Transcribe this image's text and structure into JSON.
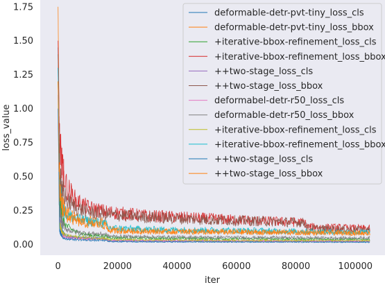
{
  "chart_data": {
    "type": "line",
    "title": "",
    "xlabel": "iter",
    "ylabel": "loss_value",
    "xlim": [
      -6000,
      110000
    ],
    "ylim": [
      -0.08,
      1.8
    ],
    "xticks": [
      0,
      20000,
      40000,
      60000,
      80000,
      100000
    ],
    "xtick_labels": [
      "0",
      "20000",
      "40000",
      "60000",
      "80000",
      "100000"
    ],
    "yticks": [
      0.0,
      0.25,
      0.5,
      0.75,
      1.0,
      1.25,
      1.5,
      1.75
    ],
    "ytick_labels": [
      "0.00",
      "0.25",
      "0.50",
      "0.75",
      "1.00",
      "1.25",
      "1.50",
      "1.75"
    ],
    "grid": false,
    "background": "#eaeaf2",
    "legend_position": "top-right",
    "series": [
      {
        "name": "deformable-detr-pvt-tiny_loss_cls",
        "color": "#1f77b4",
        "x": [
          0,
          500,
          1500,
          3000,
          6000,
          10000,
          16000,
          17000,
          30000,
          50000,
          70000,
          85000,
          100000,
          105000
        ],
        "y": [
          1.45,
          0.3,
          0.09,
          0.06,
          0.05,
          0.045,
          0.04,
          0.025,
          0.022,
          0.021,
          0.02,
          0.02,
          0.019,
          0.019
        ]
      },
      {
        "name": "deformable-detr-pvt-tiny_loss_bbox",
        "color": "#ff7f0e",
        "x": [
          0,
          500,
          1500,
          3000,
          6000,
          10000,
          16000,
          17000,
          30000,
          50000,
          70000,
          85000,
          100000,
          105000
        ],
        "y": [
          1.75,
          0.55,
          0.3,
          0.24,
          0.2,
          0.18,
          0.16,
          0.11,
          0.1,
          0.095,
          0.09,
          0.09,
          0.085,
          0.085
        ]
      },
      {
        "name": "+iterative-bbox-refinement_loss_cls",
        "color": "#2ca02c",
        "x": [
          0,
          500,
          1500,
          3000,
          6000,
          10000,
          16000,
          17000,
          30000,
          50000,
          70000,
          85000,
          100000,
          105000
        ],
        "y": [
          1.2,
          0.35,
          0.18,
          0.13,
          0.09,
          0.07,
          0.06,
          0.05,
          0.045,
          0.042,
          0.04,
          0.038,
          0.037,
          0.037
        ]
      },
      {
        "name": "+iterative-bbox-refinement_loss_bbox",
        "color": "#d62728",
        "x": [
          0,
          500,
          1500,
          3000,
          6000,
          10000,
          16000,
          30000,
          50000,
          70000,
          83000,
          84000,
          100000,
          105000
        ],
        "y": [
          1.5,
          0.75,
          0.55,
          0.42,
          0.32,
          0.27,
          0.24,
          0.21,
          0.19,
          0.17,
          0.16,
          0.13,
          0.12,
          0.115
        ]
      },
      {
        "name": "++two-stage_loss_cls",
        "color": "#9467bd",
        "x": [
          0,
          500,
          1500,
          3000,
          6000,
          10000,
          16000,
          17000,
          30000,
          50000,
          70000,
          85000,
          100000,
          105000
        ],
        "y": [
          1.3,
          0.2,
          0.08,
          0.06,
          0.05,
          0.045,
          0.04,
          0.028,
          0.025,
          0.024,
          0.023,
          0.022,
          0.022,
          0.022
        ]
      },
      {
        "name": "++two-stage_loss_bbox",
        "color": "#8c564b",
        "x": [
          0,
          500,
          1500,
          3000,
          6000,
          10000,
          16000,
          30000,
          50000,
          70000,
          83000,
          84000,
          100000,
          105000
        ],
        "y": [
          1.4,
          0.5,
          0.4,
          0.32,
          0.27,
          0.24,
          0.22,
          0.2,
          0.18,
          0.17,
          0.16,
          0.12,
          0.11,
          0.105
        ]
      },
      {
        "name": "deformabel-detr-r50_loss_cls",
        "color": "#e377c2",
        "x": [
          0,
          500,
          1500,
          3000,
          6000,
          10000,
          16000,
          17000,
          30000,
          50000,
          70000,
          85000,
          100000,
          105000
        ],
        "y": [
          1.1,
          0.12,
          0.06,
          0.05,
          0.045,
          0.04,
          0.038,
          0.03,
          0.028,
          0.027,
          0.026,
          0.025,
          0.025,
          0.025
        ]
      },
      {
        "name": "deformable-detr-r50_loss_bbox",
        "color": "#7f7f7f",
        "x": [
          0,
          500,
          1500,
          3000,
          6000,
          10000,
          16000,
          17000,
          30000,
          50000,
          70000,
          85000,
          100000,
          105000
        ],
        "y": [
          1.3,
          0.25,
          0.15,
          0.11,
          0.09,
          0.08,
          0.075,
          0.06,
          0.055,
          0.052,
          0.05,
          0.048,
          0.047,
          0.047
        ]
      },
      {
        "name": "+iterative-bbox-refinement_loss_cls",
        "color": "#bcbd22",
        "x": [
          0,
          500,
          1500,
          3000,
          6000,
          10000,
          16000,
          17000,
          30000,
          50000,
          70000,
          85000,
          100000,
          105000
        ],
        "y": [
          1.2,
          0.15,
          0.08,
          0.065,
          0.055,
          0.05,
          0.045,
          0.035,
          0.032,
          0.03,
          0.029,
          0.028,
          0.028,
          0.028
        ]
      },
      {
        "name": "+iterative-bbox-refinement_loss_bbox",
        "color": "#17becf",
        "x": [
          0,
          500,
          1500,
          3000,
          6000,
          10000,
          16000,
          17000,
          30000,
          50000,
          70000,
          85000,
          100000,
          105000
        ],
        "y": [
          1.3,
          0.45,
          0.26,
          0.22,
          0.19,
          0.17,
          0.15,
          0.12,
          0.11,
          0.105,
          0.1,
          0.095,
          0.09,
          0.09
        ]
      },
      {
        "name": "++two-stage_loss_cls",
        "color": "#1f77b4",
        "x": [
          0,
          500,
          1500,
          3000,
          6000,
          10000,
          16000,
          17000,
          30000,
          50000,
          70000,
          85000,
          100000,
          105000
        ],
        "y": [
          1.0,
          0.1,
          0.05,
          0.04,
          0.035,
          0.03,
          0.028,
          0.02,
          0.018,
          0.017,
          0.016,
          0.016,
          0.015,
          0.015
        ]
      },
      {
        "name": "++two-stage_loss_bbox",
        "color": "#ff7f0e",
        "x": [
          0,
          500,
          1500,
          3000,
          6000,
          10000,
          16000,
          17000,
          30000,
          50000,
          70000,
          85000,
          100000,
          105000
        ],
        "y": [
          1.2,
          0.4,
          0.25,
          0.2,
          0.17,
          0.15,
          0.14,
          0.1,
          0.095,
          0.09,
          0.088,
          0.085,
          0.083,
          0.083
        ]
      }
    ]
  }
}
